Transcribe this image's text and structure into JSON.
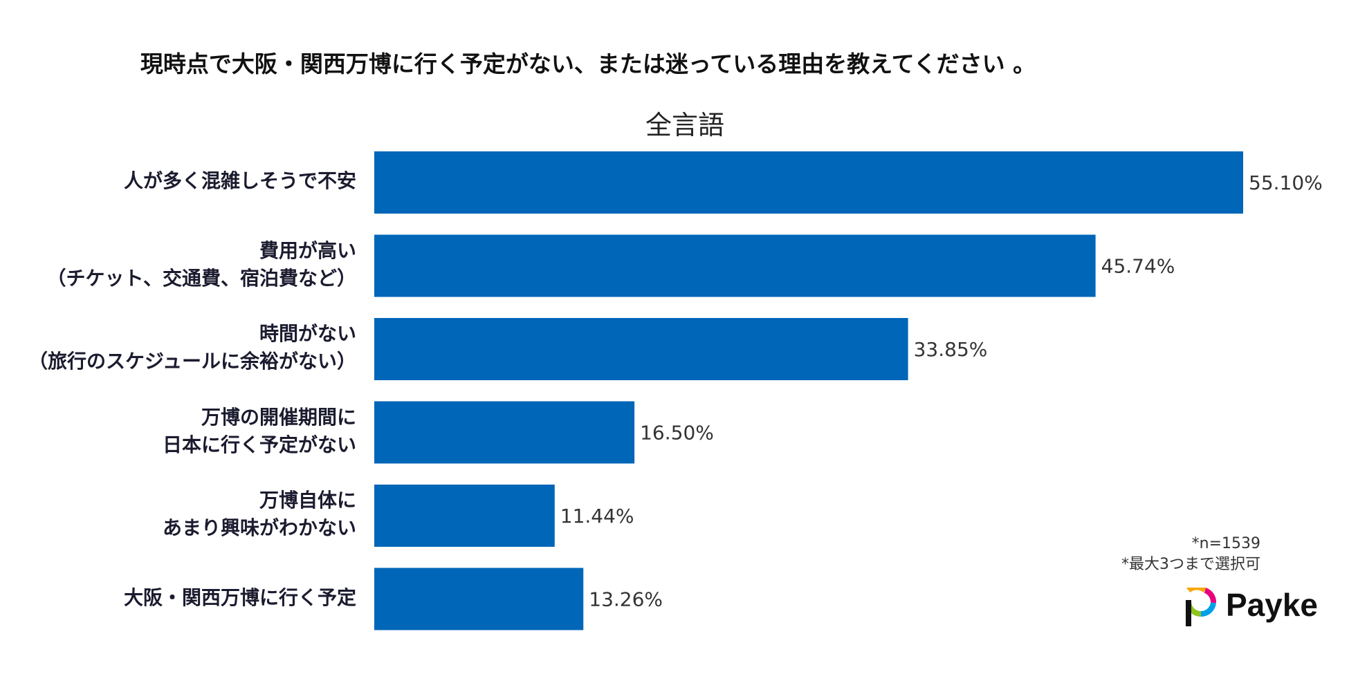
{
  "title": "現時点で大阪・関西万博に行く予定がない、または迷っている理由を教えてください 。",
  "notes": {
    "sample": "*n=1539",
    "selection": "*最大3つまで選択可"
  },
  "brand": {
    "name": "Payke"
  },
  "colors": {
    "bar": "#0066b8",
    "text": "#1b1b2f"
  },
  "chart_data": {
    "type": "bar",
    "orientation": "horizontal",
    "title": "全言語",
    "xlabel": "",
    "ylabel": "",
    "categories": [
      [
        "人が多く混雑しそうで不安"
      ],
      [
        "費用が高い",
        "（チケット、交通費、宿泊費など）"
      ],
      [
        "時間がない",
        "（旅行のスケジュールに余裕がない）"
      ],
      [
        "万博の開催期間に",
        "日本に行く予定がない"
      ],
      [
        "万博自体に",
        "あまり興味がわかない"
      ],
      [
        "大阪・関西万博に行く予定"
      ]
    ],
    "values": [
      55.1,
      45.74,
      33.85,
      16.5,
      11.44,
      13.26
    ],
    "value_labels": [
      "55.10%",
      "45.74%",
      "33.85%",
      "16.50%",
      "11.44%",
      "13.26%"
    ],
    "unit": "%",
    "xlim": [
      0,
      55.1
    ],
    "grid": false,
    "legend": "none"
  }
}
